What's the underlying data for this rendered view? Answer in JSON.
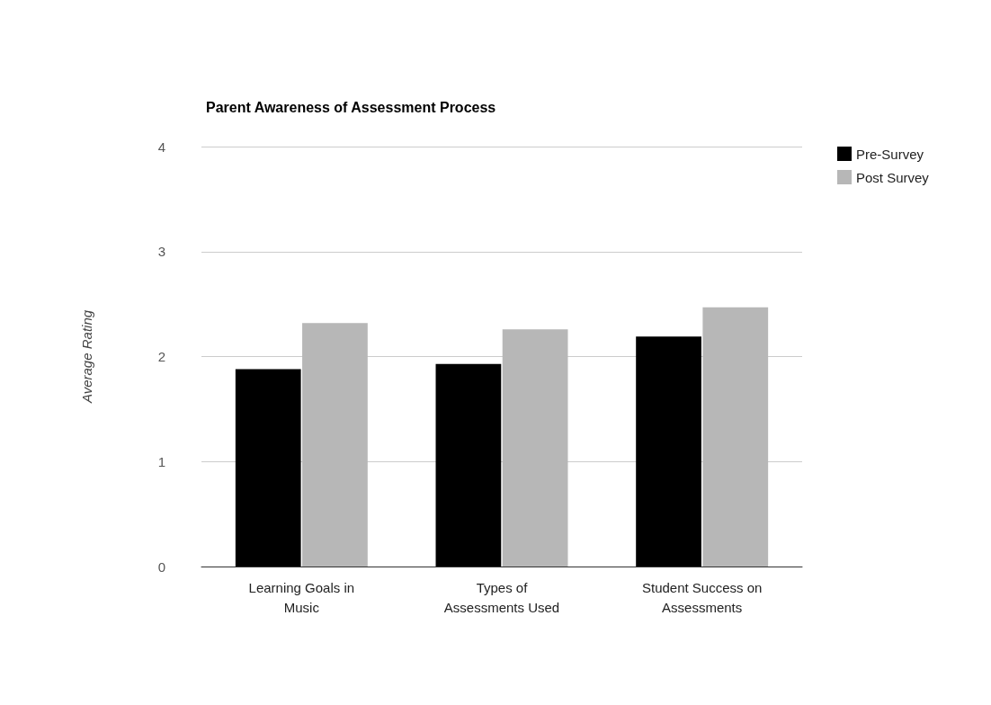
{
  "chart_data": {
    "type": "bar",
    "title": "Parent Awareness of Assessment Process",
    "ylabel": "Average Rating",
    "categories": [
      "Learning Goals in\nMusic",
      "Types of\nAssessments Used",
      "Student Success on\nAssessments"
    ],
    "series": [
      {
        "name": "Pre-Survey",
        "color": "#000000",
        "values": [
          1.88,
          1.93,
          2.19
        ]
      },
      {
        "name": "Post Survey",
        "color": "#b7b7b7",
        "values": [
          2.32,
          2.26,
          2.47
        ]
      }
    ],
    "ylim": [
      0,
      4
    ],
    "yticks": [
      0,
      1,
      2,
      3,
      4
    ],
    "grid": "y",
    "legend": "top right"
  }
}
